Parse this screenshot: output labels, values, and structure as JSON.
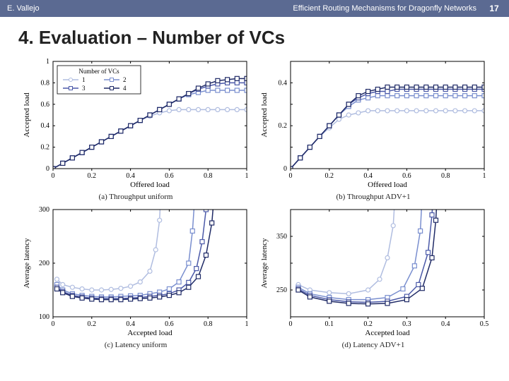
{
  "header": {
    "author": "E. Vallejo",
    "talk_title": "Efficient Routing Mechanisms for Dragonfly Networks",
    "page_number": "17"
  },
  "slide": {
    "title": "4. Evaluation – Number of VCs"
  },
  "legend": {
    "title": "Number of VCs",
    "items": [
      {
        "label": "1",
        "color": "#b0bde0",
        "marker": "circle"
      },
      {
        "label": "2",
        "color": "#7a8fcf",
        "marker": "square"
      },
      {
        "label": "3",
        "color": "#4b59a8",
        "marker": "square"
      },
      {
        "label": "4",
        "color": "#1f2a66",
        "marker": "square"
      }
    ]
  },
  "style": {
    "bg": "#ffffff",
    "axis_color": "#000000",
    "line_width": 1.5,
    "marker_size": 3
  },
  "panels": {
    "a": {
      "caption": "(a) Throughput uniform",
      "xlabel": "Offered load",
      "ylabel": "Accepted load",
      "xlim": [
        0,
        1
      ],
      "ylim": [
        0,
        1
      ],
      "xticks": [
        0,
        0.2,
        0.4,
        0.6,
        0.8,
        1
      ],
      "yticks": [
        0,
        0.2,
        0.4,
        0.6,
        0.8,
        1
      ],
      "series": [
        {
          "name": "1",
          "color": "#b0bde0",
          "marker": "circle",
          "x": [
            0,
            0.05,
            0.1,
            0.15,
            0.2,
            0.25,
            0.3,
            0.35,
            0.4,
            0.45,
            0.5,
            0.55,
            0.6,
            0.65,
            0.7,
            0.75,
            0.8,
            0.85,
            0.9,
            0.95,
            1.0
          ],
          "y": [
            0,
            0.05,
            0.1,
            0.15,
            0.2,
            0.25,
            0.3,
            0.35,
            0.4,
            0.45,
            0.49,
            0.52,
            0.54,
            0.55,
            0.55,
            0.55,
            0.55,
            0.55,
            0.55,
            0.55,
            0.55
          ]
        },
        {
          "name": "2",
          "color": "#7a8fcf",
          "marker": "square",
          "x": [
            0,
            0.05,
            0.1,
            0.15,
            0.2,
            0.25,
            0.3,
            0.35,
            0.4,
            0.45,
            0.5,
            0.55,
            0.6,
            0.65,
            0.7,
            0.75,
            0.8,
            0.85,
            0.9,
            0.95,
            1.0
          ],
          "y": [
            0,
            0.05,
            0.1,
            0.15,
            0.2,
            0.25,
            0.3,
            0.35,
            0.4,
            0.45,
            0.5,
            0.55,
            0.6,
            0.65,
            0.69,
            0.71,
            0.73,
            0.73,
            0.73,
            0.73,
            0.73
          ]
        },
        {
          "name": "3",
          "color": "#4b59a8",
          "marker": "square",
          "x": [
            0,
            0.05,
            0.1,
            0.15,
            0.2,
            0.25,
            0.3,
            0.35,
            0.4,
            0.45,
            0.5,
            0.55,
            0.6,
            0.65,
            0.7,
            0.75,
            0.8,
            0.85,
            0.9,
            0.95,
            1.0
          ],
          "y": [
            0,
            0.05,
            0.1,
            0.15,
            0.2,
            0.25,
            0.3,
            0.35,
            0.4,
            0.45,
            0.5,
            0.55,
            0.6,
            0.65,
            0.7,
            0.74,
            0.77,
            0.79,
            0.8,
            0.8,
            0.8
          ]
        },
        {
          "name": "4",
          "color": "#1f2a66",
          "marker": "square",
          "x": [
            0,
            0.05,
            0.1,
            0.15,
            0.2,
            0.25,
            0.3,
            0.35,
            0.4,
            0.45,
            0.5,
            0.55,
            0.6,
            0.65,
            0.7,
            0.75,
            0.8,
            0.85,
            0.9,
            0.95,
            1.0
          ],
          "y": [
            0,
            0.05,
            0.1,
            0.15,
            0.2,
            0.25,
            0.3,
            0.35,
            0.4,
            0.45,
            0.5,
            0.55,
            0.6,
            0.65,
            0.7,
            0.75,
            0.79,
            0.82,
            0.83,
            0.84,
            0.84
          ]
        }
      ]
    },
    "b": {
      "caption": "(b) Throughput ADV+1",
      "xlabel": "Offered load",
      "ylabel": "Accepted load",
      "xlim": [
        0,
        1
      ],
      "ylim": [
        0,
        0.5
      ],
      "xticks": [
        0,
        0.2,
        0.4,
        0.6,
        0.8,
        1
      ],
      "yticks": [
        0,
        0.1,
        0.2,
        0.3,
        0.4,
        0.5
      ],
      "ytick_labels": [
        "0",
        "",
        "0.2",
        "",
        "0.4",
        ""
      ],
      "series": [
        {
          "name": "1",
          "color": "#b0bde0",
          "marker": "circle",
          "x": [
            0,
            0.05,
            0.1,
            0.15,
            0.2,
            0.25,
            0.3,
            0.35,
            0.4,
            0.45,
            0.5,
            0.55,
            0.6,
            0.65,
            0.7,
            0.75,
            0.8,
            0.85,
            0.9,
            0.95,
            1.0
          ],
          "y": [
            0,
            0.05,
            0.1,
            0.15,
            0.19,
            0.23,
            0.25,
            0.26,
            0.27,
            0.27,
            0.27,
            0.27,
            0.27,
            0.27,
            0.27,
            0.27,
            0.27,
            0.27,
            0.27,
            0.27,
            0.27
          ]
        },
        {
          "name": "2",
          "color": "#7a8fcf",
          "marker": "square",
          "x": [
            0,
            0.05,
            0.1,
            0.15,
            0.2,
            0.25,
            0.3,
            0.35,
            0.4,
            0.45,
            0.5,
            0.55,
            0.6,
            0.65,
            0.7,
            0.75,
            0.8,
            0.85,
            0.9,
            0.95,
            1.0
          ],
          "y": [
            0,
            0.05,
            0.1,
            0.15,
            0.2,
            0.25,
            0.29,
            0.32,
            0.33,
            0.34,
            0.34,
            0.34,
            0.34,
            0.34,
            0.34,
            0.34,
            0.34,
            0.34,
            0.34,
            0.34,
            0.34
          ]
        },
        {
          "name": "3",
          "color": "#4b59a8",
          "marker": "square",
          "x": [
            0,
            0.05,
            0.1,
            0.15,
            0.2,
            0.25,
            0.3,
            0.35,
            0.4,
            0.45,
            0.5,
            0.55,
            0.6,
            0.65,
            0.7,
            0.75,
            0.8,
            0.85,
            0.9,
            0.95,
            1.0
          ],
          "y": [
            0,
            0.05,
            0.1,
            0.15,
            0.2,
            0.25,
            0.3,
            0.33,
            0.35,
            0.36,
            0.36,
            0.37,
            0.37,
            0.37,
            0.37,
            0.37,
            0.37,
            0.37,
            0.37,
            0.37,
            0.37
          ]
        },
        {
          "name": "4",
          "color": "#1f2a66",
          "marker": "square",
          "x": [
            0,
            0.05,
            0.1,
            0.15,
            0.2,
            0.25,
            0.3,
            0.35,
            0.4,
            0.45,
            0.5,
            0.55,
            0.6,
            0.65,
            0.7,
            0.75,
            0.8,
            0.85,
            0.9,
            0.95,
            1.0
          ],
          "y": [
            0,
            0.05,
            0.1,
            0.15,
            0.2,
            0.25,
            0.3,
            0.34,
            0.36,
            0.37,
            0.38,
            0.38,
            0.38,
            0.38,
            0.38,
            0.38,
            0.38,
            0.38,
            0.38,
            0.38,
            0.38
          ]
        }
      ]
    },
    "c": {
      "caption": "(c) Latency uniform",
      "xlabel": "Accepted load",
      "ylabel": "Average latency",
      "xlim": [
        0,
        1
      ],
      "ylim": [
        100,
        300
      ],
      "xticks": [
        0,
        0.2,
        0.4,
        0.6,
        0.8,
        1
      ],
      "yticks": [
        100,
        200,
        300
      ],
      "series": [
        {
          "name": "1",
          "color": "#b0bde0",
          "marker": "circle",
          "x": [
            0.02,
            0.05,
            0.1,
            0.15,
            0.2,
            0.25,
            0.3,
            0.35,
            0.4,
            0.45,
            0.5,
            0.53,
            0.55,
            0.555
          ],
          "y": [
            170,
            160,
            155,
            152,
            150,
            150,
            151,
            153,
            157,
            165,
            185,
            225,
            280,
            320
          ]
        },
        {
          "name": "2",
          "color": "#7a8fcf",
          "marker": "square",
          "x": [
            0.02,
            0.05,
            0.1,
            0.15,
            0.2,
            0.25,
            0.3,
            0.35,
            0.4,
            0.45,
            0.5,
            0.55,
            0.6,
            0.65,
            0.7,
            0.72,
            0.735
          ],
          "y": [
            160,
            150,
            143,
            140,
            138,
            137,
            137,
            138,
            139,
            140,
            143,
            146,
            152,
            165,
            200,
            260,
            340
          ]
        },
        {
          "name": "3",
          "color": "#4b59a8",
          "marker": "square",
          "x": [
            0.02,
            0.05,
            0.1,
            0.15,
            0.2,
            0.25,
            0.3,
            0.35,
            0.4,
            0.45,
            0.5,
            0.55,
            0.6,
            0.65,
            0.7,
            0.74,
            0.77,
            0.79,
            0.8
          ],
          "y": [
            155,
            147,
            140,
            137,
            135,
            134,
            134,
            134,
            135,
            136,
            138,
            140,
            143,
            150,
            164,
            190,
            240,
            300,
            380
          ]
        },
        {
          "name": "4",
          "color": "#1f2a66",
          "marker": "square",
          "x": [
            0.02,
            0.05,
            0.1,
            0.15,
            0.2,
            0.25,
            0.3,
            0.35,
            0.4,
            0.45,
            0.5,
            0.55,
            0.6,
            0.65,
            0.7,
            0.75,
            0.79,
            0.82,
            0.835,
            0.84
          ],
          "y": [
            152,
            145,
            138,
            135,
            133,
            132,
            132,
            132,
            133,
            134,
            135,
            137,
            140,
            145,
            155,
            175,
            215,
            275,
            340,
            400
          ]
        }
      ]
    },
    "d": {
      "caption": "(d) Latency ADV+1",
      "xlabel": "Accepted load",
      "ylabel": "Average latency",
      "xlim": [
        0,
        0.5
      ],
      "ylim": [
        200,
        400
      ],
      "xticks": [
        0,
        0.1,
        0.2,
        0.3,
        0.4,
        0.5
      ],
      "yticks": [
        200,
        250,
        300,
        350,
        400
      ],
      "ytick_labels": [
        "",
        "250",
        "",
        "350",
        ""
      ],
      "series": [
        {
          "name": "1",
          "color": "#b0bde0",
          "marker": "circle",
          "x": [
            0.02,
            0.05,
            0.1,
            0.15,
            0.2,
            0.23,
            0.25,
            0.265,
            0.27
          ],
          "y": [
            260,
            250,
            245,
            243,
            250,
            270,
            310,
            370,
            430
          ]
        },
        {
          "name": "2",
          "color": "#7a8fcf",
          "marker": "square",
          "x": [
            0.02,
            0.05,
            0.1,
            0.15,
            0.2,
            0.25,
            0.29,
            0.32,
            0.335,
            0.34
          ],
          "y": [
            255,
            243,
            236,
            232,
            232,
            236,
            252,
            295,
            360,
            430
          ]
        },
        {
          "name": "3",
          "color": "#4b59a8",
          "marker": "square",
          "x": [
            0.02,
            0.05,
            0.1,
            0.15,
            0.2,
            0.25,
            0.3,
            0.33,
            0.355,
            0.365,
            0.37
          ],
          "y": [
            252,
            240,
            232,
            228,
            227,
            229,
            238,
            260,
            320,
            390,
            450
          ]
        },
        {
          "name": "4",
          "color": "#1f2a66",
          "marker": "square",
          "x": [
            0.02,
            0.05,
            0.1,
            0.15,
            0.2,
            0.25,
            0.3,
            0.34,
            0.365,
            0.375,
            0.38
          ],
          "y": [
            250,
            237,
            229,
            225,
            224,
            225,
            232,
            253,
            310,
            380,
            450
          ]
        }
      ]
    }
  }
}
